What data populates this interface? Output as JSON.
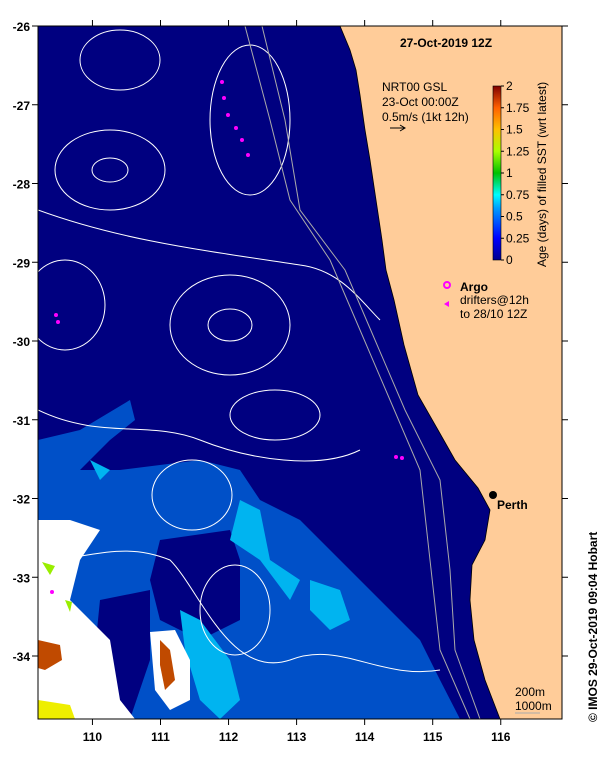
{
  "title": "27-Oct-2019 12Z",
  "product": {
    "line1": "NRT00 GSL",
    "line2": "23-Oct 00:00Z",
    "line3": "0.5m/s (1kt 12h)"
  },
  "colorbar": {
    "label": "Age (days) of filled SST (wrt latest)",
    "ticks": [
      "2",
      "1.75",
      "1.5",
      "1.25",
      "1",
      "0.75",
      "0.5",
      "0.25",
      "0"
    ],
    "range": [
      0,
      2
    ]
  },
  "legend": {
    "argo": "Argo",
    "drifters": "drifters@12h",
    "drifters_period": "to 28/10 12Z"
  },
  "city": "Perth",
  "isobaths": {
    "shallow": "200m",
    "deep": "1000m"
  },
  "copyright": "© IMOS 29-Oct-2019 09:04 Hobart",
  "axes": {
    "lon_ticks": [
      "110",
      "111",
      "112",
      "113",
      "114",
      "115",
      "116"
    ],
    "lat_ticks": [
      "-26",
      "-27",
      "-28",
      "-29",
      "-30",
      "-31",
      "-32",
      "-33",
      "-34"
    ],
    "lon_range": [
      109.2,
      116.9
    ],
    "lat_range": [
      -26,
      -34.8
    ]
  },
  "colors": {
    "land": "#FFCC99",
    "ocean": "#000080",
    "mid_blue": "#0050C8",
    "light_blue": "#00B4F0",
    "drifter": "#FF00FF"
  }
}
